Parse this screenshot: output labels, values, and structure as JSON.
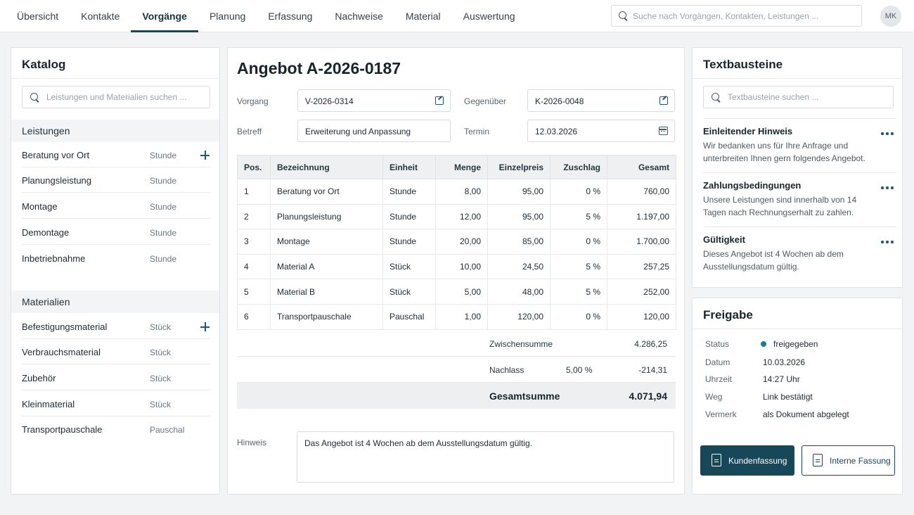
{
  "nav": {
    "items": [
      "Übersicht",
      "Kontakte",
      "Vorgänge",
      "Planung",
      "Erfassung",
      "Nachweise",
      "Material",
      "Auswertung"
    ],
    "active": "Vorgänge",
    "search_placeholder": "Suche nach Vorgängen, Kontakten, Leistungen ...",
    "avatar": "MK"
  },
  "catalog": {
    "title": "Katalog",
    "search_placeholder": "Leistungen und Materialien suchen ...",
    "services": {
      "heading": "Leistungen",
      "items": [
        {
          "name": "Beratung vor Ort",
          "unit": "Stunde"
        },
        {
          "name": "Planungsleistung",
          "unit": "Stunde"
        },
        {
          "name": "Montage",
          "unit": "Stunde"
        },
        {
          "name": "Demontage",
          "unit": "Stunde"
        },
        {
          "name": "Inbetriebnahme",
          "unit": "Stunde"
        }
      ]
    },
    "materials": {
      "heading": "Materialien",
      "items": [
        {
          "name": "Befestigungsmaterial",
          "unit": "Stück"
        },
        {
          "name": "Verbrauchsmaterial",
          "unit": "Stück"
        },
        {
          "name": "Zubehör",
          "unit": "Stück"
        },
        {
          "name": "Kleinmaterial",
          "unit": "Stück"
        },
        {
          "name": "Transportpauschale",
          "unit": "Pauschal"
        }
      ]
    }
  },
  "offer": {
    "title": "Angebot A-2026-0187",
    "fields": {
      "vorgang_label": "Vorgang",
      "vorgang_value": "V-2026-0314",
      "gegenueber_label": "Gegenüber",
      "gegenueber_value": "K-2026-0048",
      "betreff_label": "Betreff",
      "betreff_value": "Erweiterung und Anpassung",
      "termin_label": "Termin",
      "termin_value": "12.03.2026"
    },
    "table": {
      "headers": [
        "Pos.",
        "Bezeichnung",
        "Einheit",
        "Menge",
        "Einzelpreis",
        "Zuschlag",
        "Gesamt"
      ],
      "rows": [
        [
          "1",
          "Beratung vor Ort",
          "Stunde",
          "8,00",
          "95,00",
          "0 %",
          "760,00"
        ],
        [
          "2",
          "Planungsleistung",
          "Stunde",
          "12,00",
          "95,00",
          "5 %",
          "1.197,00"
        ],
        [
          "3",
          "Montage",
          "Stunde",
          "20,00",
          "85,00",
          "0 %",
          "1.700,00"
        ],
        [
          "4",
          "Material A",
          "Stück",
          "10,00",
          "24,50",
          "5 %",
          "257,25"
        ],
        [
          "5",
          "Material B",
          "Stück",
          "5,00",
          "48,00",
          "5 %",
          "252,00"
        ],
        [
          "6",
          "Transportpauschale",
          "Pauschal",
          "1,00",
          "120,00",
          "0 %",
          "120,00"
        ]
      ]
    },
    "subtotal_label": "Zwischensumme",
    "subtotal": "4.286,25",
    "discount_label": "Nachlass",
    "discount_pct": "5,00 %",
    "discount": "-214,31",
    "total_label": "Gesamtsumme",
    "total": "4.071,94",
    "note_label": "Hinweis",
    "note": "Das Angebot ist 4 Wochen ab dem Ausstellungsdatum gültig."
  },
  "modules": {
    "title": "Textbausteine",
    "search_placeholder": "Textbausteine suchen ...",
    "items": [
      {
        "title": "Einleitender Hinweis",
        "text": "Wir bedanken uns für Ihre Anfrage und unterbreiten Ihnen gern folgendes Angebot."
      },
      {
        "title": "Zahlungsbedingungen",
        "text": "Unsere Leistungen sind innerhalb von 14 Tagen nach Rechnungserhalt zu zahlen."
      },
      {
        "title": "Gültigkeit",
        "text": "Dieses Angebot ist 4 Wochen ab dem Ausstellungsdatum gültig."
      }
    ]
  },
  "release": {
    "title": "Freigabe",
    "rows": [
      {
        "key": "Status",
        "value": "freigegeben"
      },
      {
        "key": "Datum",
        "value": "10.03.2026"
      },
      {
        "key": "Uhrzeit",
        "value": "14:27 Uhr"
      },
      {
        "key": "Weg",
        "value": "Link bestätigt"
      },
      {
        "key": "Vermerk",
        "value": "als Dokument abgelegt"
      }
    ],
    "btn_customer": "Kundenfassung",
    "btn_internal": "Interne Fassung",
    "status_color": "#1d7a8c"
  },
  "colors": {
    "accent": "#17485a"
  }
}
